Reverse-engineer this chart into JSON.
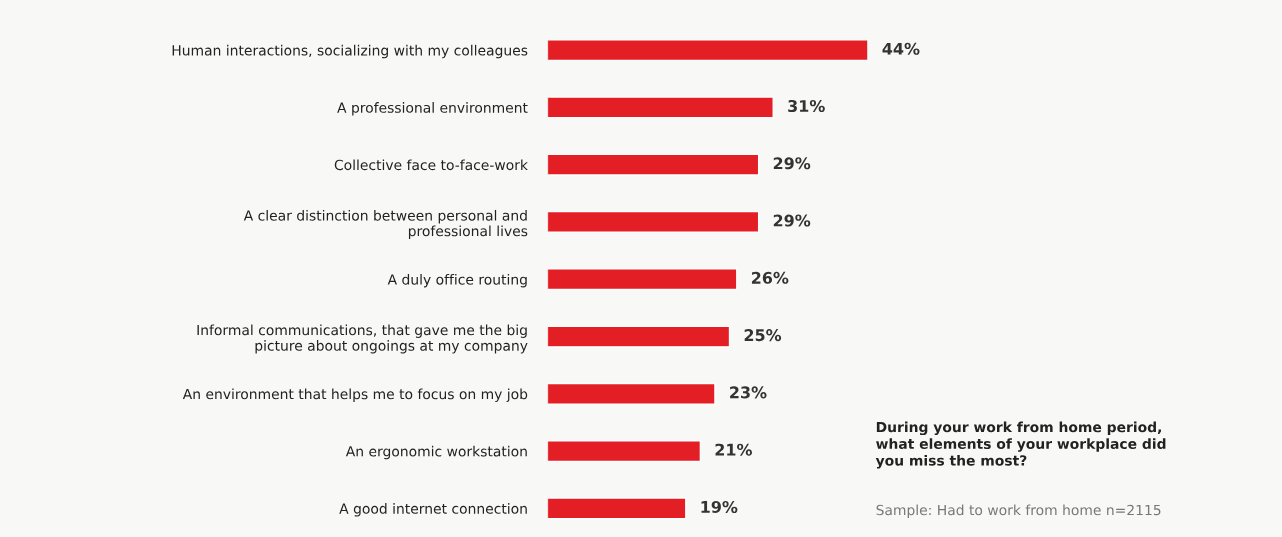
{
  "chart_data": {
    "type": "bar",
    "orientation": "horizontal",
    "title": "During your work from home period,\nwhat elements of your workplace did\nyou miss the most?",
    "annotations": [
      "Sample: Had to work from home n=2115"
    ],
    "categories": [
      "Human interactions, socializing with my colleagues",
      "A professional environment",
      "Collective face to-face-work",
      "A clear distinction between personal and\nprofessional lives",
      "A duly office routing",
      "Informal communications, that gave me the big\npicture about ongoings at my company",
      "An environment that helps me to focus on my job",
      "An ergonomic workstation",
      "A good internet connection"
    ],
    "values": [
      44,
      31,
      29,
      29,
      26,
      25,
      23,
      21,
      19
    ],
    "value_labels": [
      "44%",
      "31%",
      "29%",
      "29%",
      "26%",
      "25%",
      "23%",
      "21%",
      "19%"
    ],
    "color": "#e31e24",
    "xlim": [
      0,
      44
    ],
    "tick_labels": "y",
    "legend": false,
    "grid": false
  }
}
